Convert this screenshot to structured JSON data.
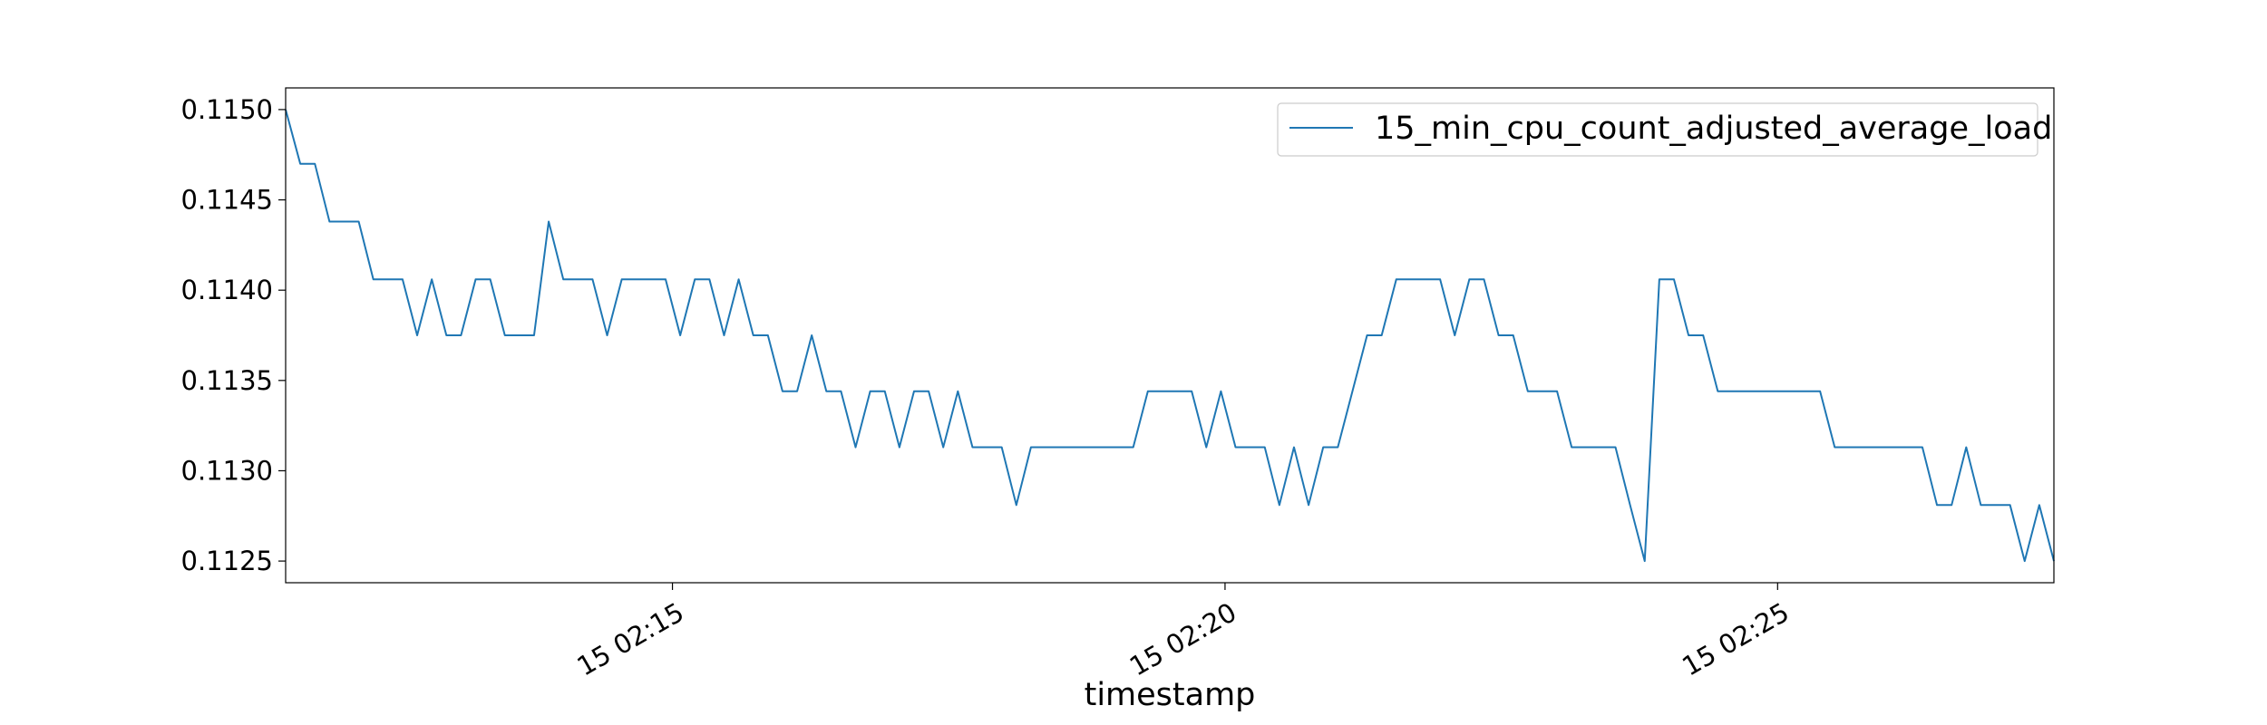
{
  "chart_data": {
    "type": "line",
    "title": "",
    "xlabel": "timestamp",
    "ylabel": "",
    "x_start": "15 02:11:30",
    "x_end": "15 02:27:30",
    "xlim": [
      "15 02:11:30",
      "15 02:27:30"
    ],
    "ylim": [
      0.11238,
      0.11512
    ],
    "grid": false,
    "legend_position": "top-right",
    "x_ticks": [
      {
        "value": "15 02:15",
        "label": "15 02:15"
      },
      {
        "value": "15 02:20",
        "label": "15 02:20"
      },
      {
        "value": "15 02:25",
        "label": "15 02:25"
      }
    ],
    "y_ticks": [
      {
        "value": 0.1125,
        "label": "0.1125"
      },
      {
        "value": 0.113,
        "label": "0.1130"
      },
      {
        "value": 0.1135,
        "label": "0.1135"
      },
      {
        "value": 0.114,
        "label": "0.1140"
      },
      {
        "value": 0.1145,
        "label": "0.1145"
      },
      {
        "value": 0.115,
        "label": "0.1150"
      }
    ],
    "series": [
      {
        "name": "15_min_cpu_count_adjusted_average_load",
        "color": "#1f77b4",
        "values": [
          0.115,
          0.1147,
          0.1147,
          0.11438,
          0.11438,
          0.11438,
          0.11406,
          0.11406,
          0.11406,
          0.11375,
          0.11406,
          0.11375,
          0.11375,
          0.11406,
          0.11406,
          0.11375,
          0.11375,
          0.11375,
          0.11438,
          0.11406,
          0.11406,
          0.11406,
          0.11375,
          0.11406,
          0.11406,
          0.11406,
          0.11406,
          0.11375,
          0.11406,
          0.11406,
          0.11375,
          0.11406,
          0.11375,
          0.11375,
          0.11344,
          0.11344,
          0.11375,
          0.11344,
          0.11344,
          0.11313,
          0.11344,
          0.11344,
          0.11313,
          0.11344,
          0.11344,
          0.11313,
          0.11344,
          0.11313,
          0.11313,
          0.11313,
          0.11281,
          0.11313,
          0.11313,
          0.11313,
          0.11313,
          0.11313,
          0.11313,
          0.11313,
          0.11313,
          0.11344,
          0.11344,
          0.11344,
          0.11344,
          0.11313,
          0.11344,
          0.11313,
          0.11313,
          0.11313,
          0.11281,
          0.11313,
          0.11281,
          0.11313,
          0.11313,
          0.11344,
          0.11375,
          0.11375,
          0.11406,
          0.11406,
          0.11406,
          0.11406,
          0.11375,
          0.11406,
          0.11406,
          0.11375,
          0.11375,
          0.11344,
          0.11344,
          0.11344,
          0.11313,
          0.11313,
          0.11313,
          0.11313,
          0.11281,
          0.1125,
          0.11406,
          0.11406,
          0.11375,
          0.11375,
          0.11344,
          0.11344,
          0.11344,
          0.11344,
          0.11344,
          0.11344,
          0.11344,
          0.11344,
          0.11313,
          0.11313,
          0.11313,
          0.11313,
          0.11313,
          0.11313,
          0.11313,
          0.11281,
          0.11281,
          0.11313,
          0.11281,
          0.11281,
          0.11281,
          0.1125,
          0.11281,
          0.1125
        ]
      }
    ]
  }
}
